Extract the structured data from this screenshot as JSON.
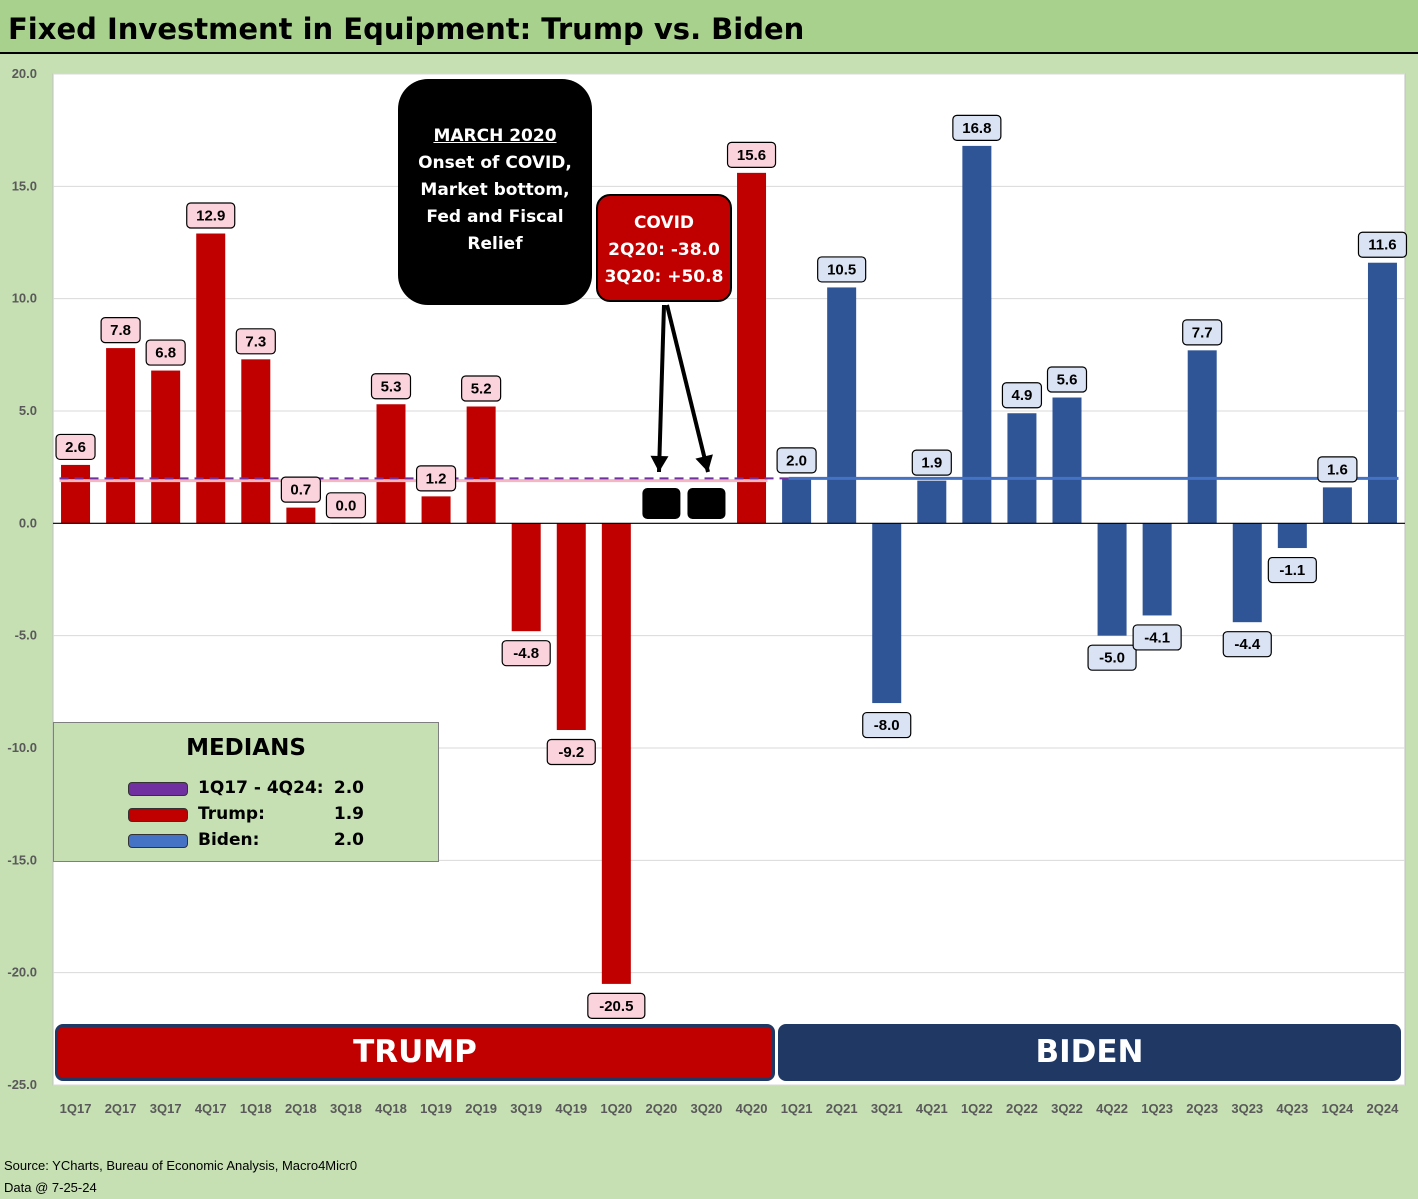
{
  "title": "Fixed Investment in Equipment: Trump vs. Biden",
  "source_lines": [
    "Source: YCharts, Bureau of Economic Analysis, Macro4Micr0",
    "Data @ 7-25-24"
  ],
  "colors": {
    "trump": "#c00000",
    "biden": "#2f5597",
    "median_all": "#7030a0",
    "median_trump": "#f4b6c2",
    "median_biden": "#4472c4",
    "trump_label_bg": "#fbd3dd",
    "biden_label_bg": "#dae3f3"
  },
  "notes": {
    "march_title": "MARCH 2020",
    "march_lines": [
      "Onset of COVID,",
      "Market bottom,",
      "Fed and Fiscal",
      "Relief"
    ],
    "covid_lines": [
      "COVID",
      "2Q20: -38.0",
      "3Q20: +50.8"
    ]
  },
  "eras": {
    "trump": "TRUMP",
    "biden": "BIDEN"
  },
  "legend": {
    "title": "MEDIANS",
    "items": [
      {
        "name": "1Q17 - 4Q24:",
        "value": "2.0"
      },
      {
        "name": "Trump:",
        "value": "1.9"
      },
      {
        "name": "Biden:",
        "value": "2.0"
      }
    ]
  },
  "chart_data": {
    "type": "bar",
    "title": "Fixed Investment in Equipment: Trump vs. Biden",
    "categories": [
      "1Q17",
      "2Q17",
      "3Q17",
      "4Q17",
      "1Q18",
      "2Q18",
      "3Q18",
      "4Q18",
      "1Q19",
      "2Q19",
      "3Q19",
      "4Q19",
      "1Q20",
      "2Q20",
      "3Q20",
      "4Q20",
      "1Q21",
      "2Q21",
      "3Q21",
      "4Q21",
      "1Q22",
      "2Q22",
      "3Q22",
      "4Q22",
      "1Q23",
      "2Q23",
      "3Q23",
      "4Q23",
      "1Q24",
      "2Q24"
    ],
    "series": [
      {
        "name": "Trump",
        "values": [
          2.6,
          7.8,
          6.8,
          12.9,
          7.3,
          0.7,
          0.0,
          5.3,
          1.2,
          5.2,
          -4.8,
          -9.2,
          -20.5,
          null,
          null,
          15.6,
          null,
          null,
          null,
          null,
          null,
          null,
          null,
          null,
          null,
          null,
          null,
          null,
          null,
          null
        ]
      },
      {
        "name": "Biden",
        "values": [
          null,
          null,
          null,
          null,
          null,
          null,
          null,
          null,
          null,
          null,
          null,
          null,
          null,
          null,
          null,
          null,
          2.0,
          10.5,
          -8.0,
          1.9,
          16.8,
          4.9,
          5.6,
          -5.0,
          -4.1,
          7.7,
          -4.4,
          -1.1,
          1.6,
          11.6
        ]
      }
    ],
    "data_labels": [
      "2.6",
      "7.8",
      "6.8",
      "12.9",
      "7.3",
      "0.7",
      "0.0",
      "5.3",
      "1.2",
      "5.2",
      "-4.8",
      "-9.2",
      "-20.5",
      "",
      "",
      "15.6",
      "2.0",
      "10.5",
      "-8.0",
      "1.9",
      "16.8",
      "4.9",
      "5.6",
      "-5.0",
      "-4.1",
      "7.7",
      "-4.4",
      "-1.1",
      "1.6",
      "11.6"
    ],
    "medians": {
      "all": 2.0,
      "trump": 1.9,
      "biden": 2.0
    },
    "ylim": [
      -25,
      20
    ],
    "yticks": [
      "20.0",
      "15.0",
      "10.0",
      "5.0",
      "0.0",
      "-5.0",
      "-10.0",
      "-15.0",
      "-20.0",
      "-25.0"
    ],
    "grid": true,
    "legend_position": "bottom-left",
    "xlabel": "",
    "ylabel": ""
  }
}
